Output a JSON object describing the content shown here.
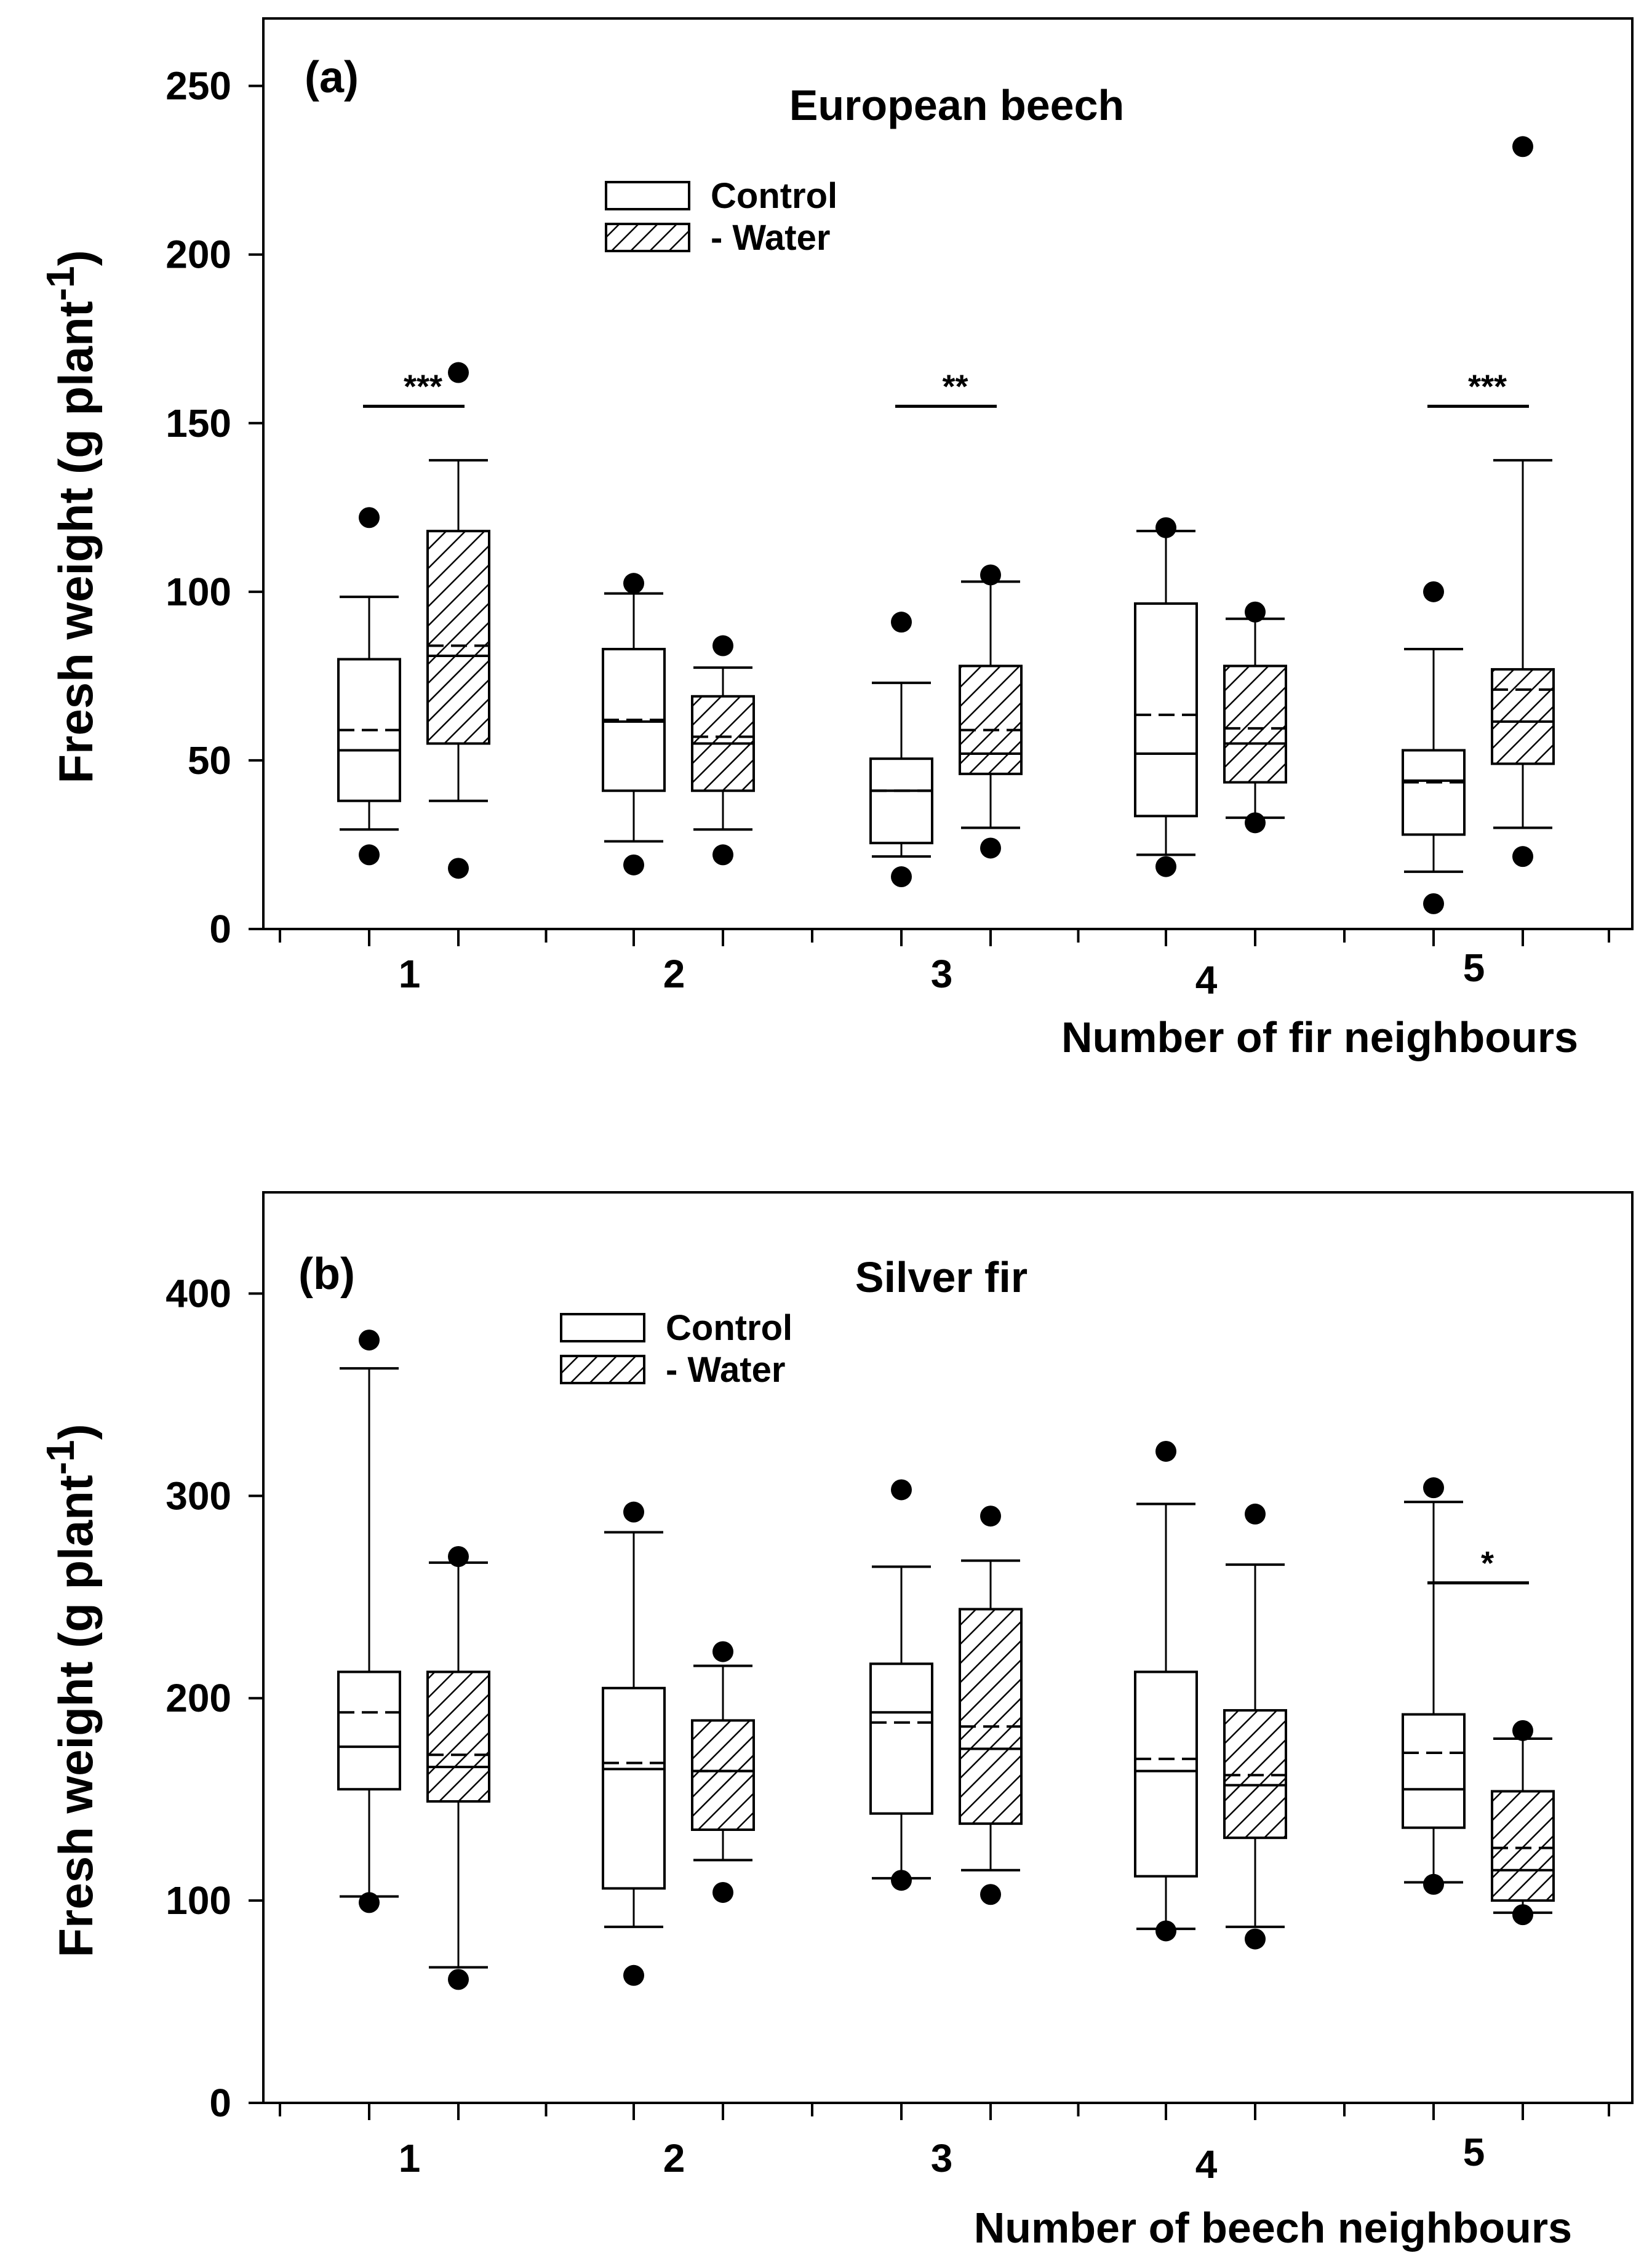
{
  "chart_data": [
    {
      "type": "box",
      "panel_label": "(a)",
      "title": "European beech",
      "xlabel": "Number of fir neighbours",
      "ylabel": "Fresh weight (g plant",
      "ylabel_superscript": "-1",
      "ylabel_close": ")",
      "ylim": [
        0,
        270
      ],
      "yticks": [
        0,
        50,
        100,
        150,
        200,
        250
      ],
      "ytick_labels": [
        "0",
        "50",
        "100",
        "150",
        "200",
        "250"
      ],
      "categories": [
        "1",
        "2",
        "3",
        "4",
        "5"
      ],
      "legend": {
        "position": "top-left",
        "entries": [
          "Control",
          "- Water"
        ]
      },
      "series": [
        {
          "name": "Control",
          "pattern": "none",
          "boxes": [
            {
              "q1": 38,
              "median": 53,
              "mean": 59,
              "q3": 80,
              "whisker_low": 29.5,
              "whisker_high": 98.5,
              "outliers": [
                122,
                22
              ]
            },
            {
              "q1": 41,
              "median": 61.5,
              "mean": 62,
              "q3": 83,
              "whisker_low": 26,
              "whisker_high": 99.5,
              "outliers": [
                102.5,
                19
              ]
            },
            {
              "q1": 25.5,
              "median": 41,
              "mean": 41,
              "q3": 50.5,
              "whisker_low": 21.5,
              "whisker_high": 73,
              "outliers": [
                91,
                15.5
              ]
            },
            {
              "q1": 33.5,
              "median": 52,
              "mean": 63.5,
              "q3": 96.5,
              "whisker_low": 22,
              "whisker_high": 118,
              "outliers": [
                119,
                18.5
              ]
            },
            {
              "q1": 28,
              "median": 44,
              "mean": 43.5,
              "q3": 53,
              "whisker_low": 17,
              "whisker_high": 83,
              "outliers": [
                100,
                7.5
              ]
            }
          ]
        },
        {
          "name": "- Water",
          "pattern": "hatched",
          "boxes": [
            {
              "q1": 55,
              "median": 81,
              "mean": 84,
              "q3": 118,
              "whisker_low": 38,
              "whisker_high": 139,
              "outliers": [
                165,
                18
              ]
            },
            {
              "q1": 41,
              "median": 55,
              "mean": 57,
              "q3": 69,
              "whisker_low": 29.5,
              "whisker_high": 77.5,
              "outliers": [
                84,
                22
              ]
            },
            {
              "q1": 46,
              "median": 52,
              "mean": 59,
              "q3": 78,
              "whisker_low": 30,
              "whisker_high": 103,
              "outliers": [
                105,
                24
              ]
            },
            {
              "q1": 43.5,
              "median": 55,
              "mean": 59.5,
              "q3": 78,
              "whisker_low": 33,
              "whisker_high": 92,
              "outliers": [
                94,
                31.5
              ]
            },
            {
              "q1": 49,
              "median": 61.5,
              "mean": 71,
              "q3": 77,
              "whisker_low": 30,
              "whisker_high": 139,
              "outliers": [
                232,
                21.5
              ]
            }
          ]
        }
      ],
      "significance": [
        {
          "category": "1",
          "label": "***",
          "y": 155
        },
        {
          "category": "3",
          "label": "**",
          "y": 155
        },
        {
          "category": "5",
          "label": "***",
          "y": 155
        }
      ]
    },
    {
      "type": "box",
      "panel_label": "(b)",
      "title": "Silver fir",
      "xlabel": "Number of beech neighbours",
      "ylabel": "Fresh weight (g plant",
      "ylabel_superscript": "-1",
      "ylabel_close": ")",
      "ylim": [
        0,
        450
      ],
      "yticks": [
        0,
        100,
        200,
        300,
        400
      ],
      "ytick_labels": [
        "0",
        "100",
        "200",
        "300",
        "400"
      ],
      "categories": [
        "1",
        "2",
        "3",
        "4",
        "5"
      ],
      "legend": {
        "position": "top-left",
        "entries": [
          "Control",
          "- Water"
        ]
      },
      "series": [
        {
          "name": "Control",
          "pattern": "none",
          "boxes": [
            {
              "q1": 155,
              "median": 176,
              "mean": 193,
              "q3": 213,
              "whisker_low": 102,
              "whisker_high": 363,
              "outliers": [
                377,
                99
              ]
            },
            {
              "q1": 106,
              "median": 165,
              "mean": 168,
              "q3": 205,
              "whisker_low": 87,
              "whisker_high": 282,
              "outliers": [
                292,
                63
              ]
            },
            {
              "q1": 143,
              "median": 193,
              "mean": 188,
              "q3": 217,
              "whisker_low": 111,
              "whisker_high": 265,
              "outliers": [
                303,
                110
              ]
            },
            {
              "q1": 112,
              "median": 164,
              "mean": 170,
              "q3": 213,
              "whisker_low": 86,
              "whisker_high": 296,
              "outliers": [
                322,
                85
              ]
            },
            {
              "q1": 136,
              "median": 155,
              "mean": 173,
              "q3": 192,
              "whisker_low": 109,
              "whisker_high": 297,
              "outliers": [
                304,
                108
              ]
            }
          ]
        },
        {
          "name": "- Water",
          "pattern": "hatched",
          "boxes": [
            {
              "q1": 149,
              "median": 166,
              "mean": 172,
              "q3": 213,
              "whisker_low": 67,
              "whisker_high": 267,
              "outliers": [
                270,
                61
              ]
            },
            {
              "q1": 135,
              "median": 164,
              "mean": 164,
              "q3": 189,
              "whisker_low": 120,
              "whisker_high": 216,
              "outliers": [
                223,
                104
              ]
            },
            {
              "q1": 138,
              "median": 175,
              "mean": 186,
              "q3": 244,
              "whisker_low": 115,
              "whisker_high": 268,
              "outliers": [
                290,
                103
              ]
            },
            {
              "q1": 131,
              "median": 157,
              "mean": 162,
              "q3": 194,
              "whisker_low": 87,
              "whisker_high": 266,
              "outliers": [
                291,
                81
              ]
            },
            {
              "q1": 100,
              "median": 115,
              "mean": 126,
              "q3": 154,
              "whisker_low": 94,
              "whisker_high": 180,
              "outliers": [
                184,
                93
              ]
            }
          ]
        }
      ],
      "significance": [
        {
          "category": "5",
          "label": "*",
          "y": 257
        }
      ]
    }
  ]
}
